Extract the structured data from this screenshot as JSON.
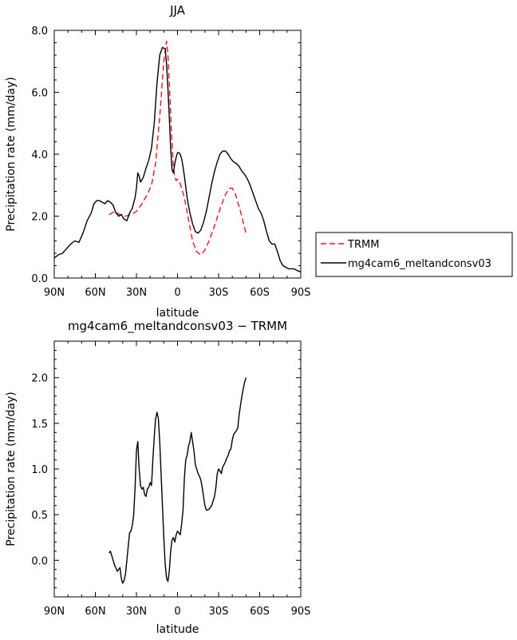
{
  "chart_data": [
    {
      "type": "line",
      "title": "JJA",
      "xlabel": "latitude",
      "ylabel": "Precipitation rate (mm/day)",
      "xlim": [
        90,
        -90
      ],
      "ylim": [
        0,
        8
      ],
      "xticks": [
        90,
        60,
        30,
        0,
        -30,
        -60,
        -90
      ],
      "xtick_labels": [
        "90N",
        "60N",
        "30N",
        "0",
        "30S",
        "60S",
        "90S"
      ],
      "yticks": [
        0,
        2,
        4,
        6,
        8
      ],
      "ytick_labels": [
        "0.0",
        "2.0",
        "4.0",
        "6.0",
        "8.0"
      ],
      "legend": {
        "placement": "outside-right"
      },
      "series": [
        {
          "name": "TRMM",
          "color": "#e8141e",
          "dash": "dashed",
          "x": [
            50,
            46,
            42,
            38,
            34,
            30,
            26,
            22,
            19,
            16,
            13,
            10,
            8,
            7,
            6,
            5,
            4,
            3,
            2,
            1,
            0,
            -2,
            -5,
            -8,
            -11,
            -14,
            -17,
            -20,
            -23,
            -26,
            -29,
            -32,
            -35,
            -38,
            -40,
            -42,
            -44,
            -46,
            -48,
            -50
          ],
          "y": [
            2.05,
            2.15,
            2.05,
            2.0,
            2.05,
            2.15,
            2.4,
            2.7,
            3.0,
            3.7,
            5.2,
            7.0,
            7.65,
            7.2,
            6.3,
            5.3,
            4.4,
            3.6,
            3.25,
            3.15,
            3.2,
            3.05,
            2.6,
            1.9,
            1.2,
            0.85,
            0.75,
            0.9,
            1.2,
            1.55,
            1.95,
            2.35,
            2.7,
            2.9,
            2.9,
            2.75,
            2.45,
            2.15,
            1.8,
            1.45
          ]
        },
        {
          "name": "mg4cam6_meltandconsv03",
          "color": "#000000",
          "dash": "solid",
          "x": [
            90,
            87,
            84,
            81,
            78,
            75,
            72,
            69,
            66,
            63,
            61,
            59,
            57,
            55,
            53,
            51,
            49,
            47,
            45,
            43,
            41,
            39,
            37,
            35,
            33,
            31,
            30,
            29,
            28,
            27,
            25,
            23,
            21,
            19,
            17,
            15,
            13,
            11,
            9,
            8,
            7,
            6,
            5,
            4,
            3,
            2,
            1,
            0,
            -1,
            -2,
            -3,
            -4,
            -5,
            -7,
            -9,
            -11,
            -13,
            -15,
            -17,
            -19,
            -21,
            -23,
            -25,
            -27,
            -29,
            -31,
            -33,
            -35,
            -37,
            -39,
            -41,
            -43,
            -45,
            -47,
            -49,
            -51,
            -53,
            -55,
            -57,
            -59,
            -61,
            -63,
            -65,
            -67,
            -69,
            -71,
            -73,
            -75,
            -77,
            -79,
            -81,
            -83,
            -85,
            -87,
            -90
          ],
          "y": [
            0.65,
            0.75,
            0.8,
            0.95,
            1.1,
            1.2,
            1.15,
            1.45,
            1.85,
            2.1,
            2.4,
            2.5,
            2.5,
            2.45,
            2.4,
            2.5,
            2.45,
            2.35,
            2.1,
            2.0,
            2.05,
            1.9,
            1.85,
            2.1,
            2.25,
            2.6,
            2.9,
            3.4,
            3.3,
            3.1,
            3.25,
            3.55,
            3.8,
            4.2,
            5.0,
            6.3,
            7.2,
            7.45,
            7.4,
            6.9,
            6.1,
            5.2,
            4.2,
            3.5,
            3.4,
            3.7,
            3.9,
            4.05,
            4.05,
            4.0,
            3.85,
            3.6,
            3.3,
            2.6,
            2.1,
            1.75,
            1.5,
            1.45,
            1.55,
            1.8,
            2.15,
            2.6,
            3.05,
            3.45,
            3.75,
            4.0,
            4.1,
            4.1,
            4.0,
            3.85,
            3.75,
            3.7,
            3.6,
            3.45,
            3.35,
            3.2,
            3.0,
            2.75,
            2.5,
            2.25,
            2.1,
            1.85,
            1.5,
            1.2,
            1.1,
            1.1,
            0.85,
            0.55,
            0.4,
            0.35,
            0.3,
            0.3,
            0.3,
            0.25,
            0.2
          ]
        }
      ]
    },
    {
      "type": "line",
      "title": "mg4cam6_meltandconsv03 − TRMM",
      "xlabel": "latitude",
      "ylabel": "Precipitation rate (mm/day)",
      "xlim": [
        90,
        -90
      ],
      "ylim": [
        -0.4,
        2.4
      ],
      "xticks": [
        90,
        60,
        30,
        0,
        -30,
        -60,
        -90
      ],
      "xtick_labels": [
        "90N",
        "60N",
        "30N",
        "0",
        "30S",
        "60S",
        "90S"
      ],
      "yticks": [
        0,
        0.5,
        1.0,
        1.5,
        2.0
      ],
      "ytick_labels": [
        "0.0",
        "0.5",
        "1.0",
        "1.5",
        "2.0"
      ],
      "series": [
        {
          "color": "#000000",
          "dash": "solid",
          "x": [
            50,
            49,
            48,
            46,
            44,
            42,
            41,
            40,
            39,
            38,
            37,
            36,
            35,
            34,
            33,
            32,
            31,
            30,
            29,
            28,
            27,
            26,
            25,
            24,
            23,
            22,
            21,
            20,
            19,
            18,
            17,
            16,
            15,
            14,
            13,
            12,
            11,
            10,
            9,
            8,
            7,
            6,
            5,
            4,
            3,
            2,
            1,
            0,
            -1,
            -2,
            -3,
            -4,
            -5,
            -6,
            -7,
            -8,
            -9,
            -10,
            -11,
            -12,
            -13,
            -14,
            -15,
            -16,
            -17,
            -18,
            -19,
            -20,
            -21,
            -22,
            -23,
            -24,
            -25,
            -26,
            -27,
            -28,
            -29,
            -30,
            -31,
            -32,
            -33,
            -34,
            -35,
            -36,
            -37,
            -38,
            -39,
            -40,
            -41,
            -42,
            -43,
            -44,
            -45,
            -46,
            -47,
            -48,
            -49,
            -50
          ],
          "y": [
            0.08,
            0.1,
            0.05,
            -0.05,
            -0.12,
            -0.08,
            -0.2,
            -0.25,
            -0.22,
            -0.15,
            0.0,
            0.15,
            0.3,
            0.32,
            0.38,
            0.5,
            0.8,
            1.2,
            1.3,
            1.0,
            0.82,
            0.78,
            0.8,
            0.72,
            0.7,
            0.78,
            0.8,
            0.85,
            0.82,
            1.1,
            1.35,
            1.55,
            1.62,
            1.55,
            1.3,
            0.95,
            0.6,
            0.25,
            -0.05,
            -0.2,
            -0.23,
            -0.12,
            0.1,
            0.22,
            0.25,
            0.2,
            0.28,
            0.32,
            0.3,
            0.28,
            0.4,
            0.55,
            0.9,
            1.1,
            1.15,
            1.25,
            1.3,
            1.4,
            1.3,
            1.2,
            1.05,
            1.0,
            0.95,
            0.92,
            0.88,
            0.8,
            0.7,
            0.6,
            0.55,
            0.55,
            0.56,
            0.58,
            0.6,
            0.65,
            0.7,
            0.8,
            0.95,
            1.0,
            0.98,
            0.95,
            1.02,
            1.05,
            1.08,
            1.12,
            1.15,
            1.2,
            1.22,
            1.32,
            1.38,
            1.4,
            1.42,
            1.45,
            1.6,
            1.7,
            1.8,
            1.88,
            1.95,
            2.0
          ]
        }
      ]
    }
  ]
}
